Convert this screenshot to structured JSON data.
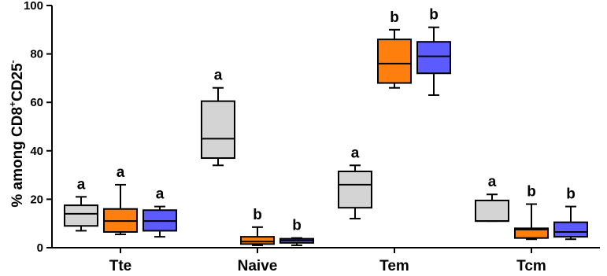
{
  "chart_data": {
    "type": "boxplot",
    "title": "",
    "ylabel": {
      "main": "% among CD8",
      "sup1": "+",
      "mid": "CD25",
      "sup2": "-"
    },
    "xlabel": "",
    "ylim": [
      0,
      100
    ],
    "yticks": [
      0,
      20,
      40,
      60,
      80,
      100
    ],
    "categories": [
      "Tte",
      "Naive",
      "Tem",
      "Tcm"
    ],
    "series": [
      {
        "color": "#d4d4d4",
        "boxes": [
          {
            "min": 7,
            "q1": 9,
            "median": 14,
            "q3": 17.5,
            "max": 21,
            "sig": "a"
          },
          {
            "min": 34,
            "q1": 37,
            "median": 45,
            "q3": 60.5,
            "max": 66,
            "sig": "a"
          },
          {
            "min": 12,
            "q1": 16.5,
            "median": 26,
            "q3": 31.5,
            "max": 34,
            "sig": "a"
          },
          {
            "min": 11,
            "q1": 11,
            "median": 11,
            "q3": 19.5,
            "max": 22,
            "sig": "a"
          }
        ]
      },
      {
        "color": "#ff7f0e",
        "boxes": [
          {
            "min": 5.5,
            "q1": 6.5,
            "median": 11,
            "q3": 16,
            "max": 26,
            "sig": "a"
          },
          {
            "min": 1,
            "q1": 1.5,
            "median": 2.5,
            "q3": 4.5,
            "max": 8.5,
            "sig": "b"
          },
          {
            "min": 66,
            "q1": 68,
            "median": 76,
            "q3": 86,
            "max": 90,
            "sig": "b"
          },
          {
            "min": 3.5,
            "q1": 4,
            "median": 7.5,
            "q3": 8,
            "max": 18,
            "sig": "b"
          }
        ]
      },
      {
        "color": "#5b5bff",
        "boxes": [
          {
            "min": 4.5,
            "q1": 7,
            "median": 11,
            "q3": 15.5,
            "max": 17,
            "sig": "a"
          },
          {
            "min": 1,
            "q1": 2,
            "median": 3,
            "q3": 3.7,
            "max": 4,
            "sig": "b"
          },
          {
            "min": 63,
            "q1": 72,
            "median": 79,
            "q3": 85,
            "max": 91,
            "sig": "b"
          },
          {
            "min": 3.5,
            "q1": 4.5,
            "median": 6.5,
            "q3": 10.5,
            "max": 17,
            "sig": "b"
          }
        ]
      }
    ]
  }
}
